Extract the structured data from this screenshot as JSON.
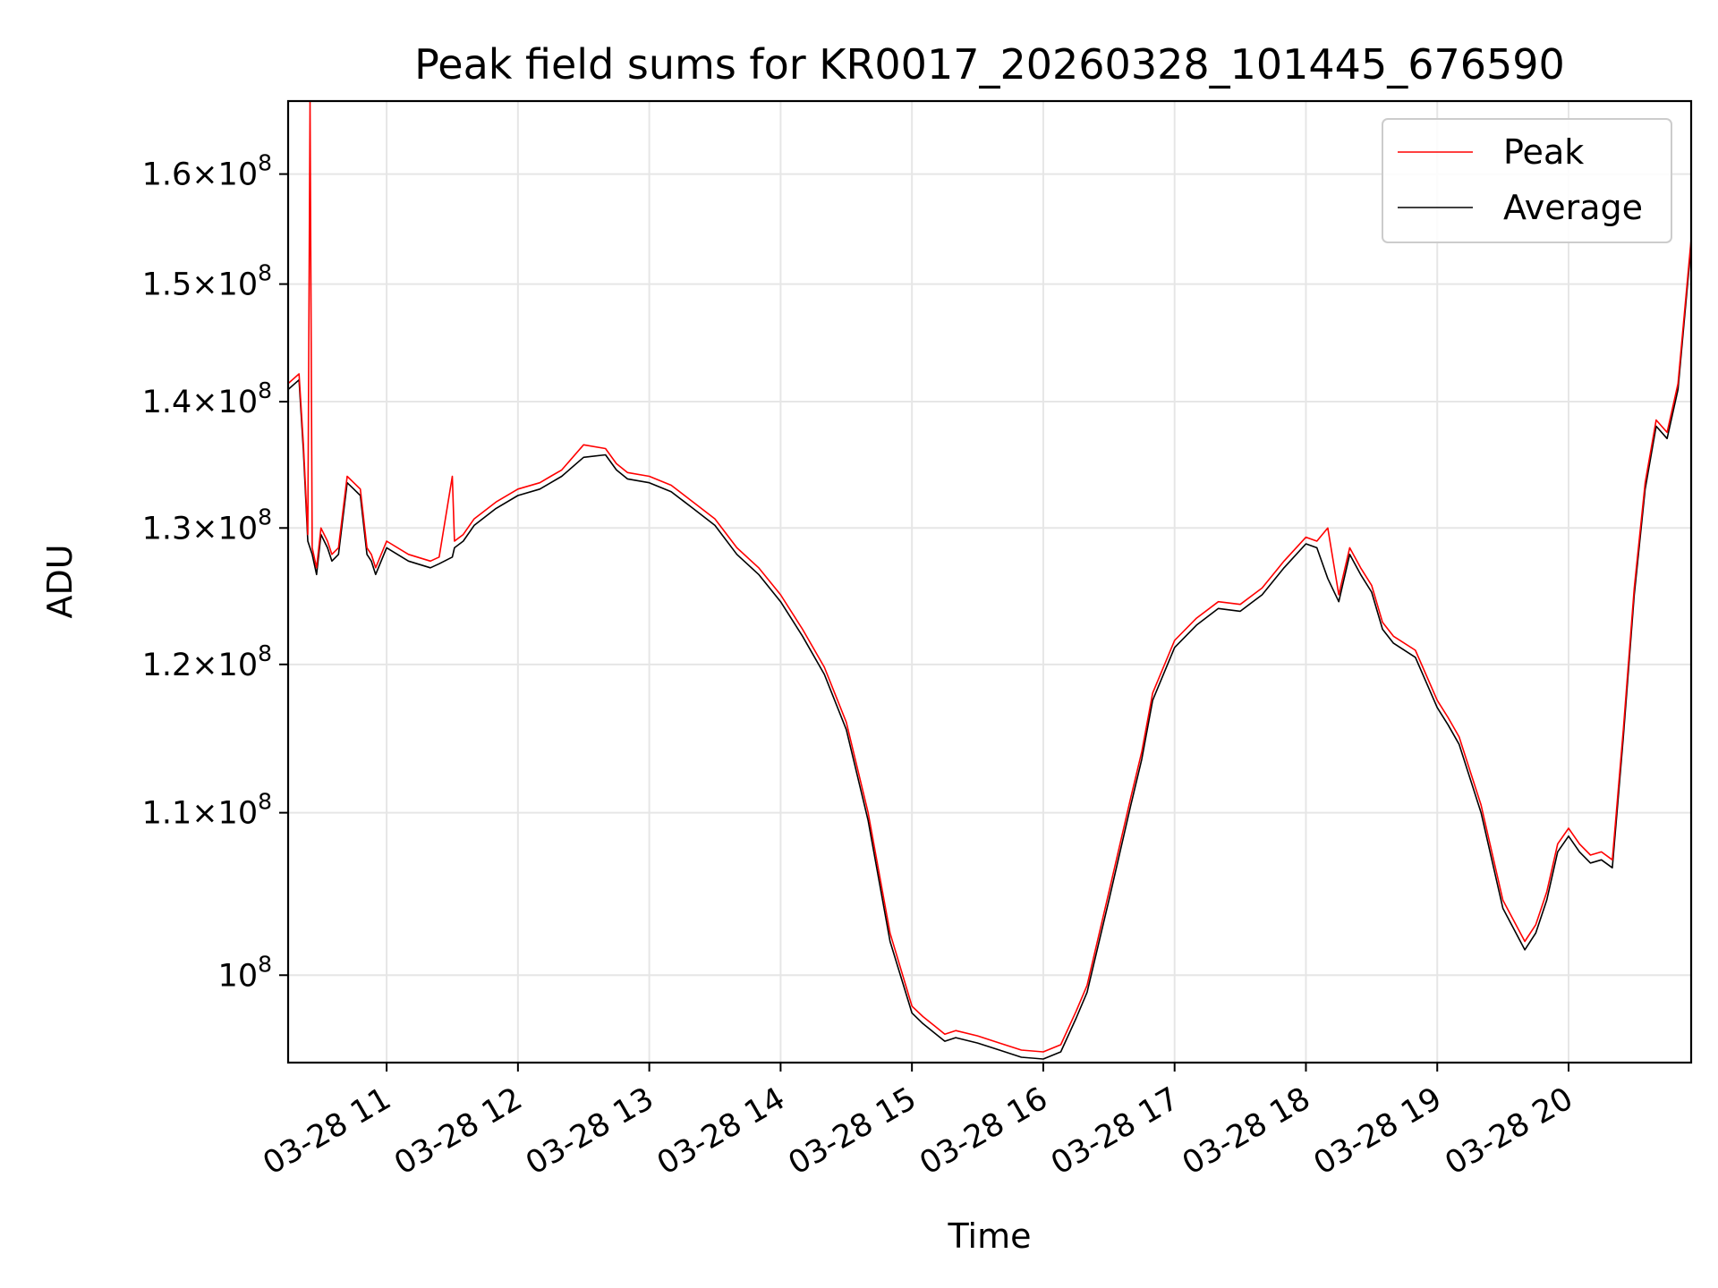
{
  "chart_data": {
    "type": "line",
    "title": "Peak field sums for KR0017_20260328_101445_676590",
    "xlabel": "Time",
    "ylabel": "ADU",
    "y_scale": "log",
    "ylim": [
      95000000,
      167000000
    ],
    "xlim": [
      "2026-03-28 10:15",
      "2026-03-28 20:56"
    ],
    "grid": true,
    "legend_position": "top-right",
    "x_ticks": [
      {
        "t": "2026-03-28 11:00",
        "label": "03-28 11"
      },
      {
        "t": "2026-03-28 12:00",
        "label": "03-28 12"
      },
      {
        "t": "2026-03-28 13:00",
        "label": "03-28 13"
      },
      {
        "t": "2026-03-28 14:00",
        "label": "03-28 14"
      },
      {
        "t": "2026-03-28 15:00",
        "label": "03-28 15"
      },
      {
        "t": "2026-03-28 16:00",
        "label": "03-28 16"
      },
      {
        "t": "2026-03-28 17:00",
        "label": "03-28 17"
      },
      {
        "t": "2026-03-28 18:00",
        "label": "03-28 18"
      },
      {
        "t": "2026-03-28 19:00",
        "label": "03-28 19"
      },
      {
        "t": "2026-03-28 20:00",
        "label": "03-28 20"
      }
    ],
    "y_ticks": [
      {
        "value": 100000000,
        "label": "10^8"
      },
      {
        "value": 110000000,
        "label": "1.1×10^8"
      },
      {
        "value": 120000000,
        "label": "1.2×10^8"
      },
      {
        "value": 130000000,
        "label": "1.3×10^8"
      },
      {
        "value": 140000000,
        "label": "1.4×10^8"
      },
      {
        "value": 150000000,
        "label": "1.5×10^8"
      },
      {
        "value": 160000000,
        "label": "1.6×10^8"
      }
    ],
    "series": [
      {
        "name": "Average",
        "color": "#000000",
        "t": [
          "2026-03-28 10:15",
          "2026-03-28 10:20",
          "2026-03-28 10:22",
          "2026-03-28 10:24",
          "2026-03-28 10:26",
          "2026-03-28 10:28",
          "2026-03-28 10:30",
          "2026-03-28 10:33",
          "2026-03-28 10:35",
          "2026-03-28 10:38",
          "2026-03-28 10:42",
          "2026-03-28 10:45",
          "2026-03-28 10:48",
          "2026-03-28 10:51",
          "2026-03-28 10:53",
          "2026-03-28 10:55",
          "2026-03-28 11:00",
          "2026-03-28 11:10",
          "2026-03-28 11:20",
          "2026-03-28 11:24",
          "2026-03-28 11:30",
          "2026-03-28 11:31",
          "2026-03-28 11:35",
          "2026-03-28 11:40",
          "2026-03-28 11:50",
          "2026-03-28 12:00",
          "2026-03-28 12:10",
          "2026-03-28 12:15",
          "2026-03-28 12:20",
          "2026-03-28 12:30",
          "2026-03-28 12:40",
          "2026-03-28 12:45",
          "2026-03-28 12:50",
          "2026-03-28 13:00",
          "2026-03-28 13:10",
          "2026-03-28 13:20",
          "2026-03-28 13:30",
          "2026-03-28 13:40",
          "2026-03-28 13:50",
          "2026-03-28 14:00",
          "2026-03-28 14:10",
          "2026-03-28 14:20",
          "2026-03-28 14:30",
          "2026-03-28 14:40",
          "2026-03-28 14:50",
          "2026-03-28 15:00",
          "2026-03-28 15:05",
          "2026-03-28 15:10",
          "2026-03-28 15:15",
          "2026-03-28 15:20",
          "2026-03-28 15:30",
          "2026-03-28 15:40",
          "2026-03-28 15:50",
          "2026-03-28 16:00",
          "2026-03-28 16:08",
          "2026-03-28 16:15",
          "2026-03-28 16:20",
          "2026-03-28 16:30",
          "2026-03-28 16:40",
          "2026-03-28 16:45",
          "2026-03-28 16:50",
          "2026-03-28 17:00",
          "2026-03-28 17:10",
          "2026-03-28 17:20",
          "2026-03-28 17:30",
          "2026-03-28 17:40",
          "2026-03-28 17:50",
          "2026-03-28 18:00",
          "2026-03-28 18:05",
          "2026-03-28 18:10",
          "2026-03-28 18:15",
          "2026-03-28 18:20",
          "2026-03-28 18:25",
          "2026-03-28 18:30",
          "2026-03-28 18:35",
          "2026-03-28 18:40",
          "2026-03-28 18:50",
          "2026-03-28 19:00",
          "2026-03-28 19:05",
          "2026-03-28 19:10",
          "2026-03-28 19:20",
          "2026-03-28 19:30",
          "2026-03-28 19:40",
          "2026-03-28 19:45",
          "2026-03-28 19:50",
          "2026-03-28 19:55",
          "2026-03-28 20:00",
          "2026-03-28 20:05",
          "2026-03-28 20:10",
          "2026-03-28 20:15",
          "2026-03-28 20:20",
          "2026-03-28 20:25",
          "2026-03-28 20:30",
          "2026-03-28 20:35",
          "2026-03-28 20:40",
          "2026-03-28 20:45",
          "2026-03-28 20:50",
          "2026-03-28 20:56"
        ],
        "values": [
          141000000,
          141800000,
          136000000,
          129000000,
          128000000,
          126500000,
          129500000,
          128500000,
          127500000,
          128000000,
          133500000,
          133000000,
          132500000,
          128000000,
          127500000,
          126500000,
          128500000,
          127500000,
          127000000,
          127300000,
          127800000,
          128500000,
          129000000,
          130200000,
          131500000,
          132500000,
          133000000,
          133500000,
          134000000,
          135500000,
          135700000,
          134500000,
          133800000,
          133500000,
          132800000,
          131500000,
          130200000,
          128000000,
          126500000,
          124500000,
          122000000,
          119300000,
          115500000,
          109500000,
          102000000,
          97800000,
          97200000,
          96700000,
          96200000,
          96400000,
          96100000,
          95700000,
          95300000,
          95200000,
          95600000,
          97500000,
          99000000,
          104500000,
          110500000,
          113500000,
          117500000,
          121200000,
          122800000,
          124000000,
          123800000,
          125000000,
          127000000,
          128800000,
          128500000,
          126200000,
          124500000,
          128000000,
          126500000,
          125200000,
          122500000,
          121500000,
          120500000,
          117000000,
          115800000,
          114500000,
          110000000,
          104000000,
          101500000,
          102500000,
          104500000,
          107500000,
          108500000,
          107500000,
          106800000,
          107000000,
          106500000,
          115000000,
          125000000,
          133000000,
          138000000,
          137000000,
          141000000,
          153500000
        ]
      },
      {
        "name": "Peak",
        "color": "#ff0000",
        "t": [
          "2026-03-28 10:15",
          "2026-03-28 10:20",
          "2026-03-28 10:22",
          "2026-03-28 10:24",
          "2026-03-28 10:25",
          "2026-03-28 10:26",
          "2026-03-28 10:28",
          "2026-03-28 10:30",
          "2026-03-28 10:33",
          "2026-03-28 10:35",
          "2026-03-28 10:38",
          "2026-03-28 10:42",
          "2026-03-28 10:45",
          "2026-03-28 10:48",
          "2026-03-28 10:51",
          "2026-03-28 10:53",
          "2026-03-28 10:55",
          "2026-03-28 11:00",
          "2026-03-28 11:10",
          "2026-03-28 11:20",
          "2026-03-28 11:24",
          "2026-03-28 11:30",
          "2026-03-28 11:31",
          "2026-03-28 11:35",
          "2026-03-28 11:40",
          "2026-03-28 11:50",
          "2026-03-28 12:00",
          "2026-03-28 12:10",
          "2026-03-28 12:15",
          "2026-03-28 12:20",
          "2026-03-28 12:30",
          "2026-03-28 12:40",
          "2026-03-28 12:45",
          "2026-03-28 12:50",
          "2026-03-28 13:00",
          "2026-03-28 13:10",
          "2026-03-28 13:20",
          "2026-03-28 13:30",
          "2026-03-28 13:40",
          "2026-03-28 13:50",
          "2026-03-28 14:00",
          "2026-03-28 14:10",
          "2026-03-28 14:20",
          "2026-03-28 14:30",
          "2026-03-28 14:40",
          "2026-03-28 14:50",
          "2026-03-28 15:00",
          "2026-03-28 15:05",
          "2026-03-28 15:10",
          "2026-03-28 15:15",
          "2026-03-28 15:20",
          "2026-03-28 15:30",
          "2026-03-28 15:40",
          "2026-03-28 15:50",
          "2026-03-28 16:00",
          "2026-03-28 16:08",
          "2026-03-28 16:15",
          "2026-03-28 16:20",
          "2026-03-28 16:30",
          "2026-03-28 16:40",
          "2026-03-28 16:45",
          "2026-03-28 16:50",
          "2026-03-28 17:00",
          "2026-03-28 17:10",
          "2026-03-28 17:20",
          "2026-03-28 17:30",
          "2026-03-28 17:40",
          "2026-03-28 17:50",
          "2026-03-28 18:00",
          "2026-03-28 18:05",
          "2026-03-28 18:10",
          "2026-03-28 18:15",
          "2026-03-28 18:20",
          "2026-03-28 18:25",
          "2026-03-28 18:30",
          "2026-03-28 18:35",
          "2026-03-28 18:40",
          "2026-03-28 18:50",
          "2026-03-28 19:00",
          "2026-03-28 19:05",
          "2026-03-28 19:10",
          "2026-03-28 19:20",
          "2026-03-28 19:30",
          "2026-03-28 19:40",
          "2026-03-28 19:45",
          "2026-03-28 19:50",
          "2026-03-28 19:55",
          "2026-03-28 20:00",
          "2026-03-28 20:05",
          "2026-03-28 20:10",
          "2026-03-28 20:15",
          "2026-03-28 20:20",
          "2026-03-28 20:25",
          "2026-03-28 20:30",
          "2026-03-28 20:35",
          "2026-03-28 20:40",
          "2026-03-28 20:45",
          "2026-03-28 20:50",
          "2026-03-28 20:56"
        ],
        "values": [
          141500000,
          142300000,
          136500000,
          129500000,
          167000000,
          128500000,
          127000000,
          130000000,
          129000000,
          128000000,
          128500000,
          134000000,
          133500000,
          133000000,
          128500000,
          128000000,
          127000000,
          129000000,
          128000000,
          127500000,
          127800000,
          134000000,
          129000000,
          129500000,
          130700000,
          132000000,
          133000000,
          133500000,
          134000000,
          134500000,
          136500000,
          136200000,
          135000000,
          134300000,
          134000000,
          133300000,
          132000000,
          130700000,
          128500000,
          127000000,
          125000000,
          122500000,
          119800000,
          116000000,
          110000000,
          102500000,
          98200000,
          97600000,
          97100000,
          96600000,
          96800000,
          96500000,
          96100000,
          95700000,
          95600000,
          96000000,
          97900000,
          99400000,
          105000000,
          111000000,
          114000000,
          118000000,
          121700000,
          123300000,
          124500000,
          124300000,
          125500000,
          127500000,
          129300000,
          129000000,
          130000000,
          125000000,
          128500000,
          127000000,
          125700000,
          123000000,
          122000000,
          121000000,
          117500000,
          116300000,
          115000000,
          110500000,
          104500000,
          102000000,
          103000000,
          105000000,
          108000000,
          109000000,
          108000000,
          107300000,
          107500000,
          107000000,
          115500000,
          125500000,
          133500000,
          138500000,
          137500000,
          141500000,
          154000000
        ]
      }
    ]
  }
}
